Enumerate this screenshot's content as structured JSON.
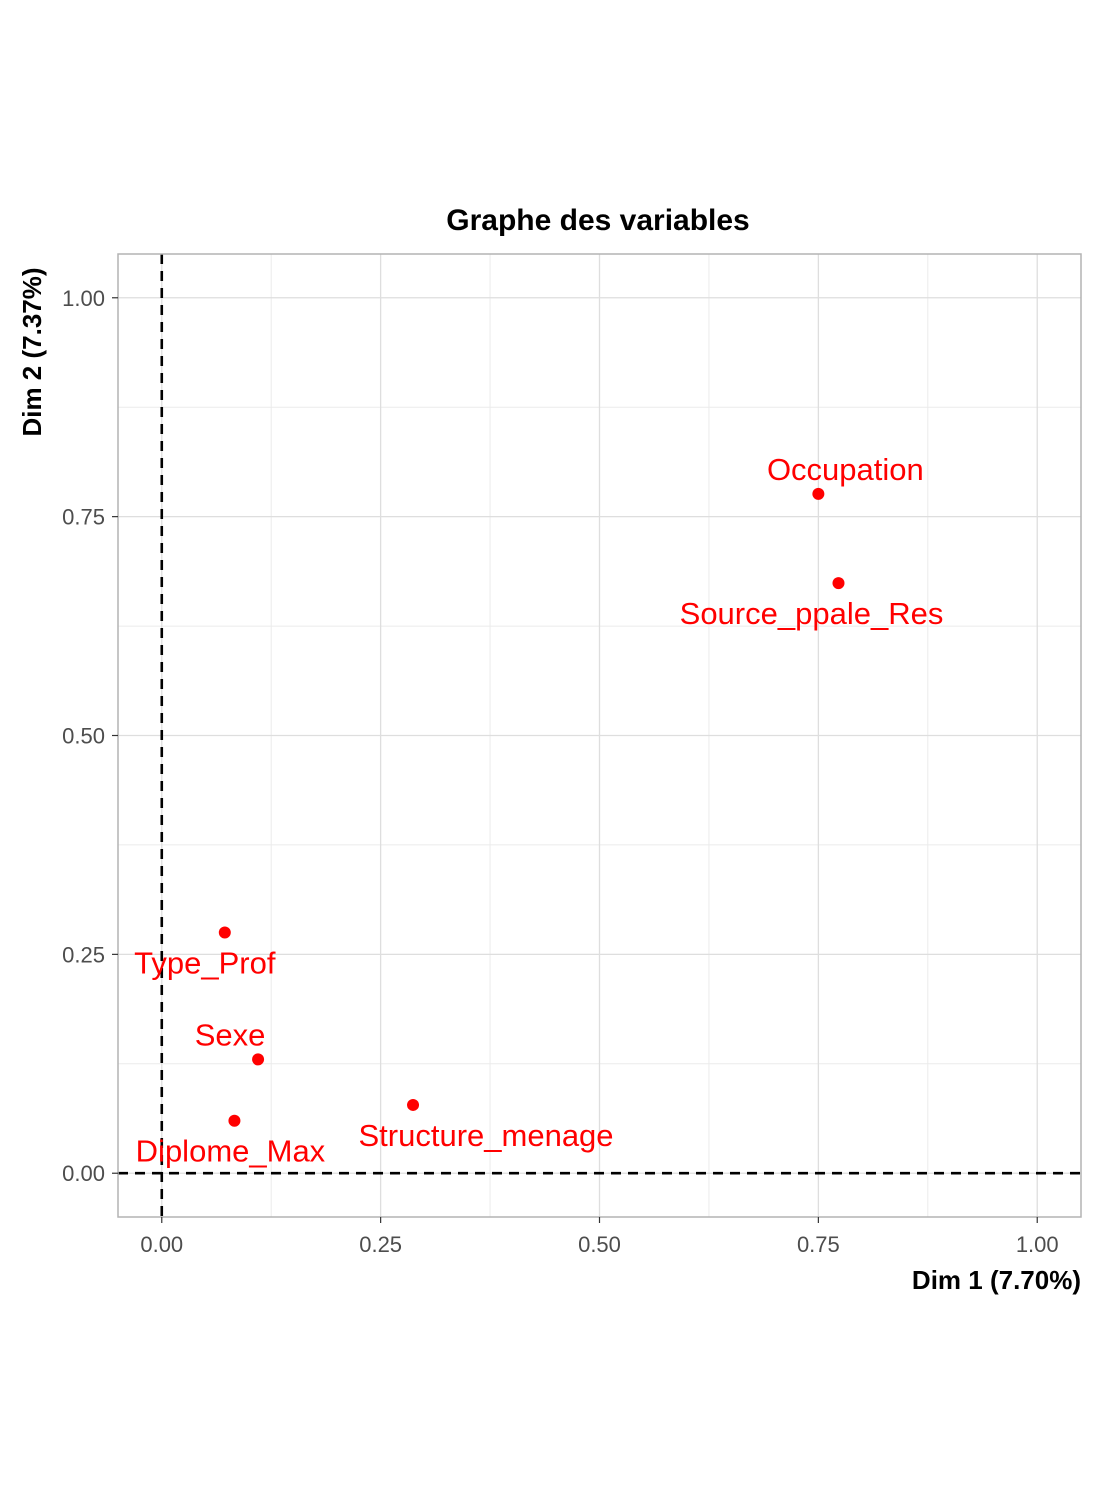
{
  "chart_data": {
    "type": "scatter",
    "title": "Graphe des variables",
    "xlabel": "Dim 1 (7.70%)",
    "ylabel": "Dim 2 (7.37%)",
    "xlim": [
      -0.05,
      1.05
    ],
    "ylim": [
      -0.05,
      1.05
    ],
    "xticks": [
      0.0,
      0.25,
      0.5,
      0.75,
      1.0
    ],
    "xtick_labels": [
      "0.00",
      "0.25",
      "0.50",
      "0.75",
      "1.00"
    ],
    "yticks": [
      0.0,
      0.25,
      0.5,
      0.75,
      1.0
    ],
    "ytick_labels": [
      "0.00",
      "0.25",
      "0.50",
      "0.75",
      "1.00"
    ],
    "grid": true,
    "reference_lines": {
      "x": 0,
      "y": 0,
      "style": "dashed"
    },
    "point_color": "#ff0000",
    "points": [
      {
        "label": "Occupation",
        "x": 0.75,
        "y": 0.776
      },
      {
        "label": "Source_ppale_Res",
        "x": 0.773,
        "y": 0.674
      },
      {
        "label": "Type_Prof",
        "x": 0.072,
        "y": 0.275
      },
      {
        "label": "Sexe",
        "x": 0.11,
        "y": 0.13
      },
      {
        "label": "Structure_menage",
        "x": 0.287,
        "y": 0.078
      },
      {
        "label": "Diplome_Max",
        "x": 0.083,
        "y": 0.06
      }
    ]
  }
}
